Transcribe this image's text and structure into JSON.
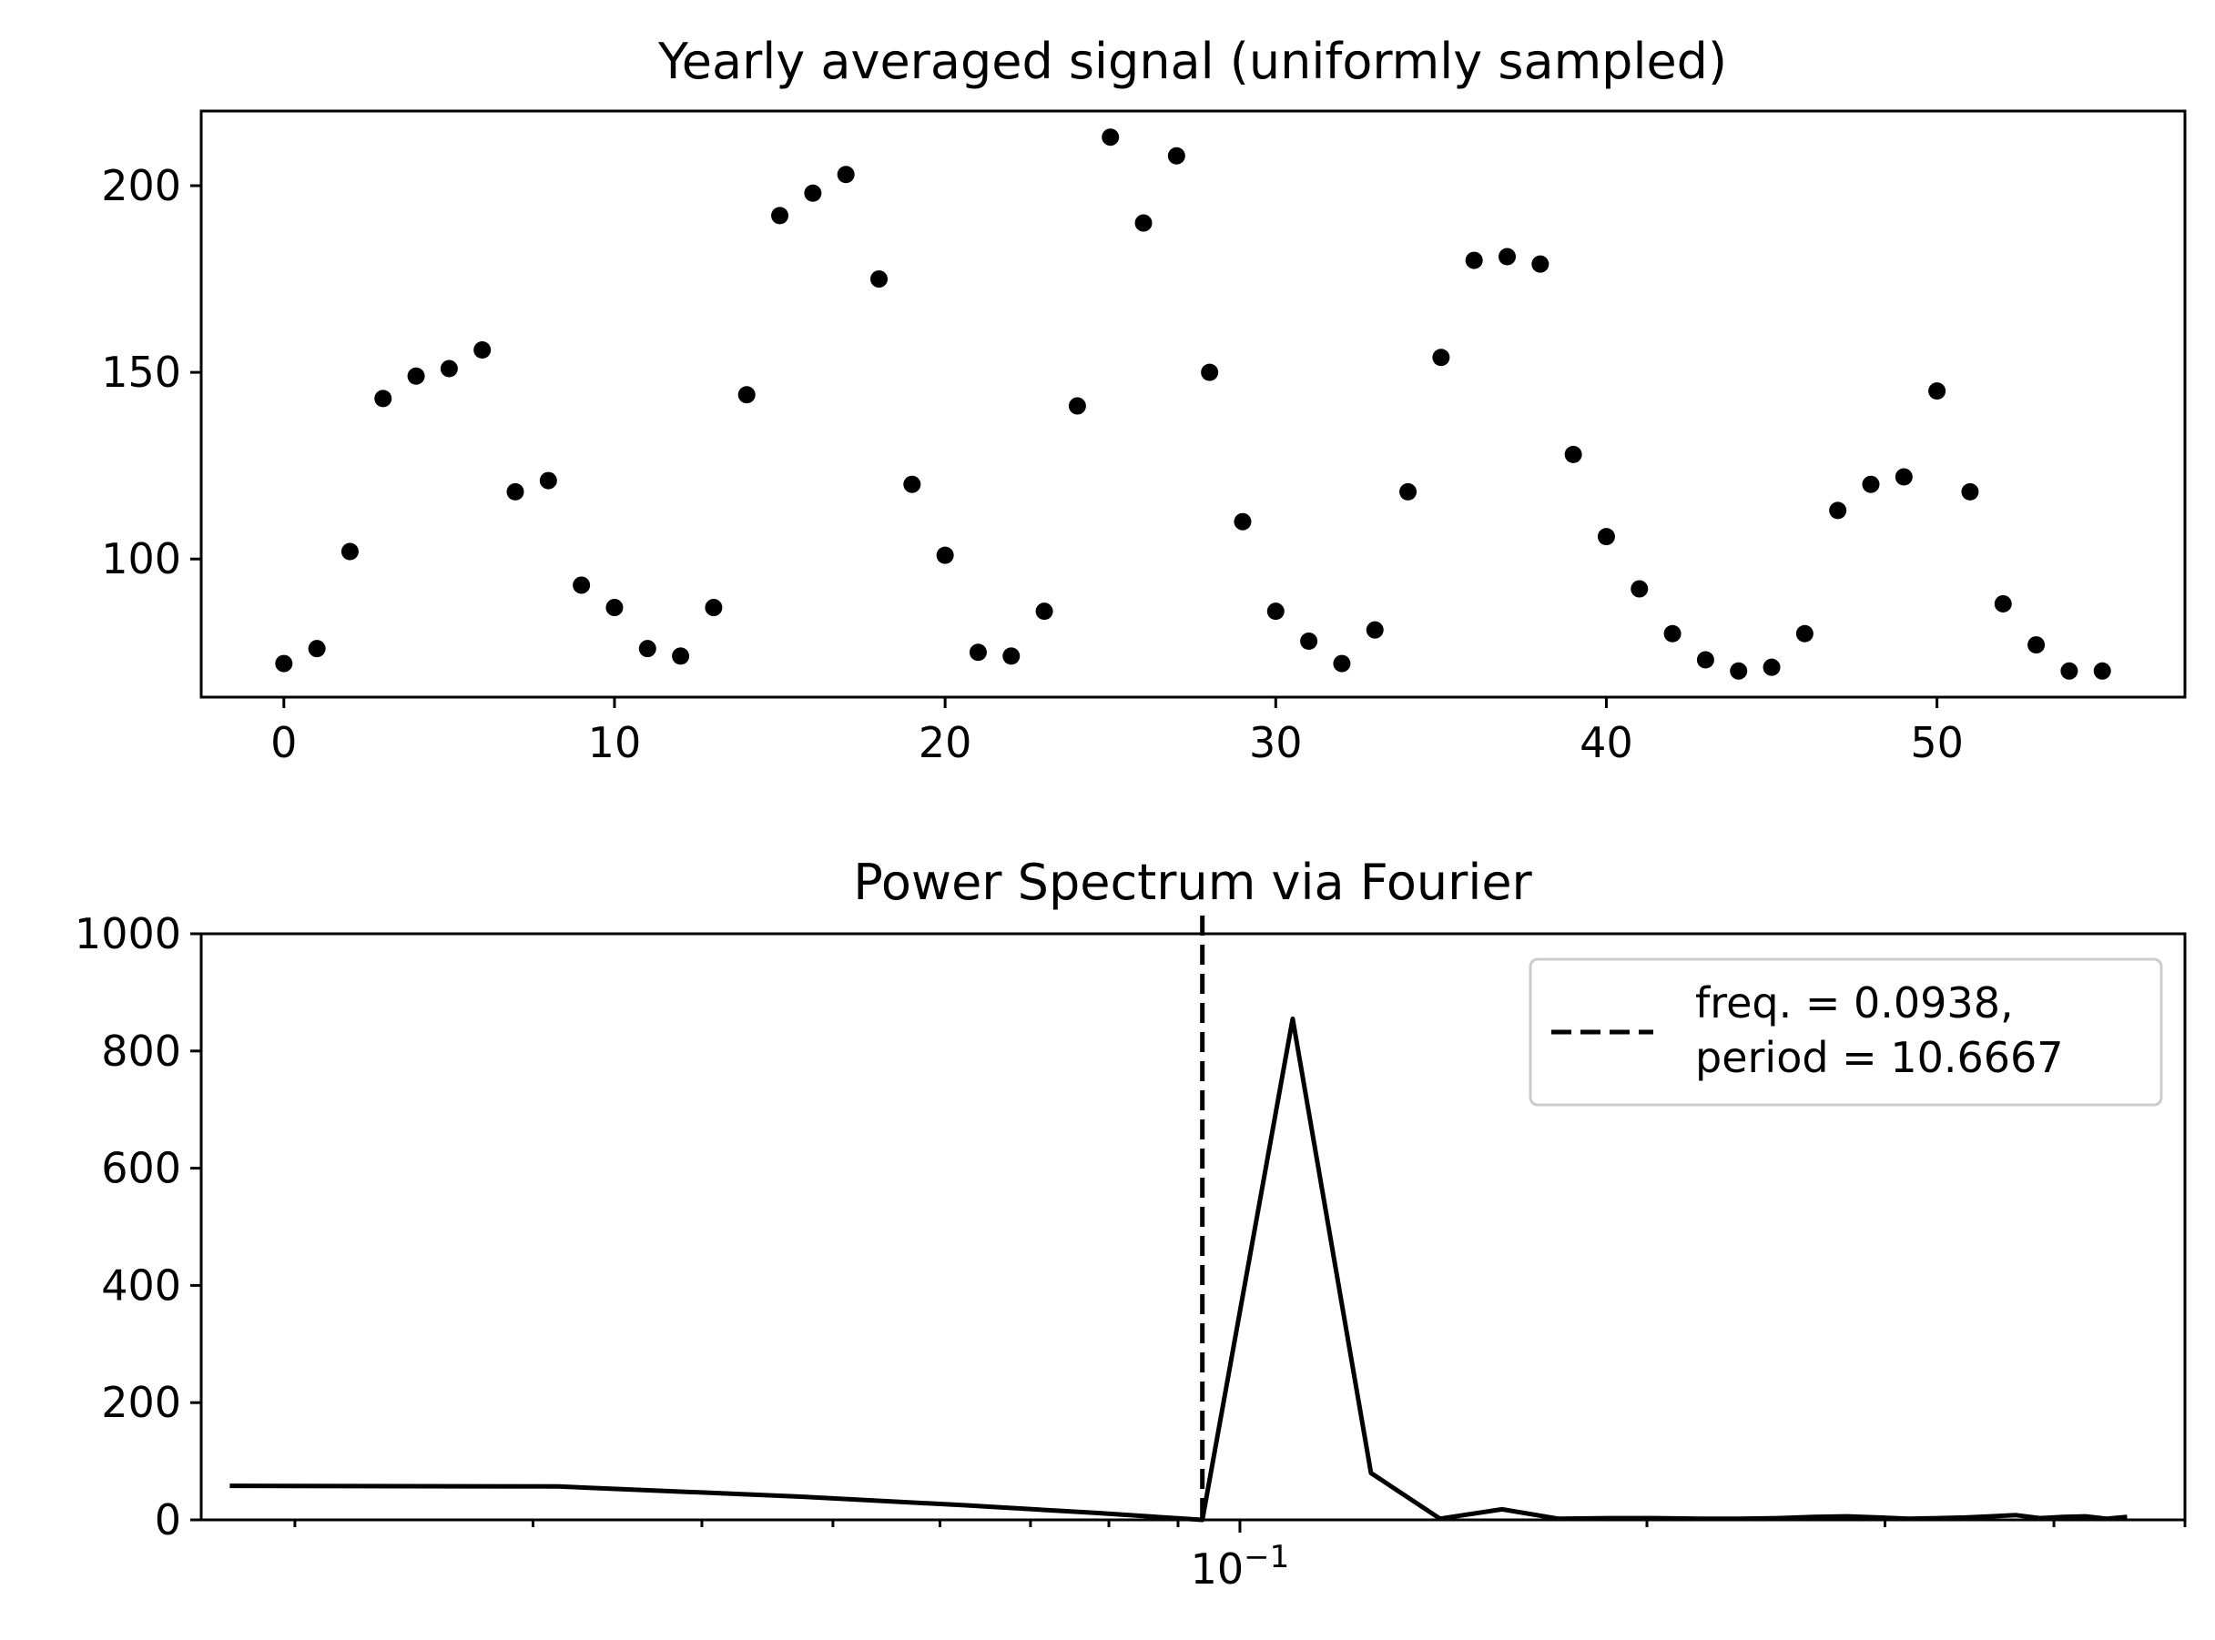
{
  "chart_data": [
    {
      "type": "scatter",
      "title": "Yearly averaged signal (uniformly sampled)",
      "xlabel": "",
      "ylabel": "",
      "xlim": [
        -2.5,
        57.5
      ],
      "ylim": [
        63,
        220
      ],
      "xticks": [
        0,
        10,
        20,
        30,
        40,
        50
      ],
      "yticks": [
        100,
        150,
        200
      ],
      "grid": false,
      "marker_color": "#000000",
      "series": [
        {
          "x": [
            0,
            1,
            2,
            3,
            4,
            5,
            6,
            7,
            8,
            9,
            10,
            11,
            12,
            13,
            14,
            15,
            16,
            17,
            18,
            19,
            20,
            21,
            22,
            23,
            24,
            25,
            26,
            27,
            28,
            29,
            30,
            31,
            32,
            33,
            34,
            35,
            36,
            37,
            38,
            39,
            40,
            41,
            42,
            43,
            44,
            45,
            46,
            47,
            48,
            49,
            50,
            51,
            52,
            53,
            54,
            55
          ],
          "y": [
            72,
            76,
            102,
            143,
            149,
            151,
            156,
            118,
            121,
            93,
            87,
            76,
            74,
            87,
            144,
            192,
            198,
            203,
            175,
            120,
            101,
            75,
            74,
            86,
            141,
            213,
            190,
            208,
            150,
            110,
            86,
            78,
            72,
            81,
            118,
            154,
            180,
            181,
            179,
            128,
            106,
            92,
            80,
            73,
            70,
            71,
            80,
            113,
            120,
            122,
            145,
            118,
            88,
            77,
            70,
            70
          ]
        }
      ]
    },
    {
      "type": "line",
      "title": "Power Spectrum via Fourier",
      "xlabel": "",
      "ylabel": "",
      "xscale": "log",
      "xlim": [
        0.01705,
        0.5
      ],
      "ylim": [
        0,
        1000
      ],
      "yticks": [
        0,
        200,
        400,
        600,
        800,
        1000
      ],
      "xtick_major_labels": [
        "10^{-1}"
      ],
      "grid": false,
      "legend_position": "top-right",
      "line_color": "#000000",
      "series": [
        {
          "x": [
            0.0179,
            0.0313,
            0.0469,
            0.0625,
            0.0781,
            0.0938,
            0.1094,
            0.125,
            0.1406,
            0.1563,
            0.1719,
            0.1875,
            0.2031,
            0.2188,
            0.2344,
            0.25,
            0.2656,
            0.2813,
            0.2969,
            0.3125,
            0.3281,
            0.3438,
            0.3594,
            0.375,
            0.3906,
            0.4063,
            0.4219,
            0.4375,
            0.4531
          ],
          "y": [
            58,
            57,
            40,
            25,
            12,
            0,
            855,
            80,
            2,
            18,
            2,
            3,
            3,
            2,
            2,
            3,
            5,
            6,
            4,
            2,
            3,
            4,
            6,
            8,
            3,
            5,
            6,
            2,
            5
          ]
        }
      ],
      "vline": {
        "x": 0.0938,
        "style": "dashed",
        "legend_label_line1": "freq. = 0.0938,",
        "legend_label_line2": "period = 10.6667"
      }
    }
  ]
}
